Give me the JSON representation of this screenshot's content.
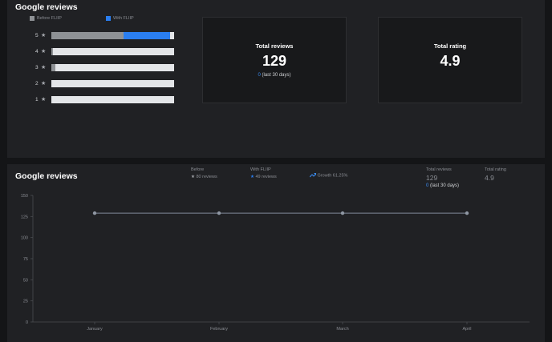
{
  "top_panel": {
    "title": "Google reviews",
    "legend": {
      "before_label": "Before FLIIP",
      "with_label": "With FLIIP",
      "before_color": "#8e9195",
      "with_color": "#2a7ef0"
    },
    "ratings": [
      {
        "stars": "5",
        "before": 0.59,
        "with": 0.38
      },
      {
        "stars": "4",
        "before": 0.01,
        "with": 0.0
      },
      {
        "stars": "3",
        "before": 0.03,
        "with": 0.0
      },
      {
        "stars": "2",
        "before": 0.0,
        "with": 0.0
      },
      {
        "stars": "1",
        "before": 0.0,
        "with": 0.0
      }
    ],
    "total_reviews_card": {
      "label": "Total reviews",
      "value": "129",
      "recent_count": "0",
      "recent_label": "(last 30 days)"
    },
    "total_rating_card": {
      "label": "Total rating",
      "value": "4.9"
    }
  },
  "bottom_panel": {
    "title": "Google reviews",
    "before": {
      "label": "Before",
      "value": "80 reviews"
    },
    "with": {
      "label": "With FLIIP",
      "value": "49 reviews"
    },
    "growth": {
      "label": "Growth 61.25%"
    },
    "total_reviews": {
      "label": "Total reviews",
      "value": "129",
      "recent_count": "0",
      "recent_label": "(last 30 days)"
    },
    "total_rating": {
      "label": "Total rating",
      "value": "4.9"
    }
  },
  "chart_data": {
    "type": "line",
    "categories": [
      "January",
      "February",
      "March",
      "April"
    ],
    "series": [
      {
        "values": [
          129,
          129,
          129,
          129
        ]
      }
    ],
    "y_ticks": [
      "0",
      "25",
      "50",
      "75",
      "100",
      "125",
      "150"
    ],
    "ylim": [
      0,
      150
    ],
    "grid": false,
    "line_color": "#7f8a99",
    "title": "",
    "xlabel": "",
    "ylabel": ""
  }
}
